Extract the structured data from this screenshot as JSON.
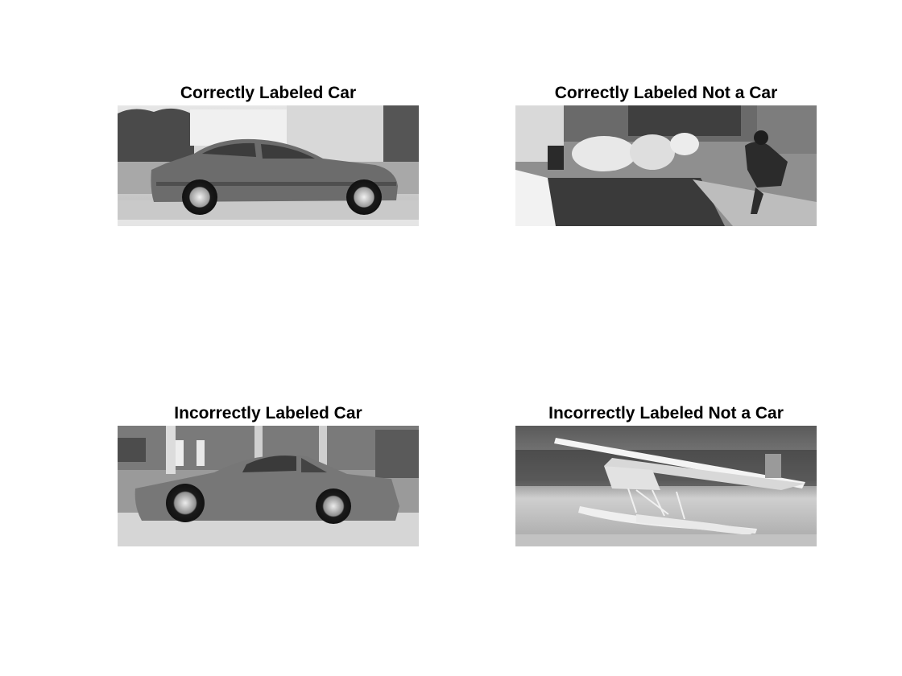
{
  "panels": [
    {
      "title": "Correctly Labeled Car"
    },
    {
      "title": "Correctly Labeled Not a Car"
    },
    {
      "title": "Incorrectly Labeled Car"
    },
    {
      "title": "Incorrectly Labeled Not a Car"
    }
  ],
  "image_tone": "grayscale"
}
